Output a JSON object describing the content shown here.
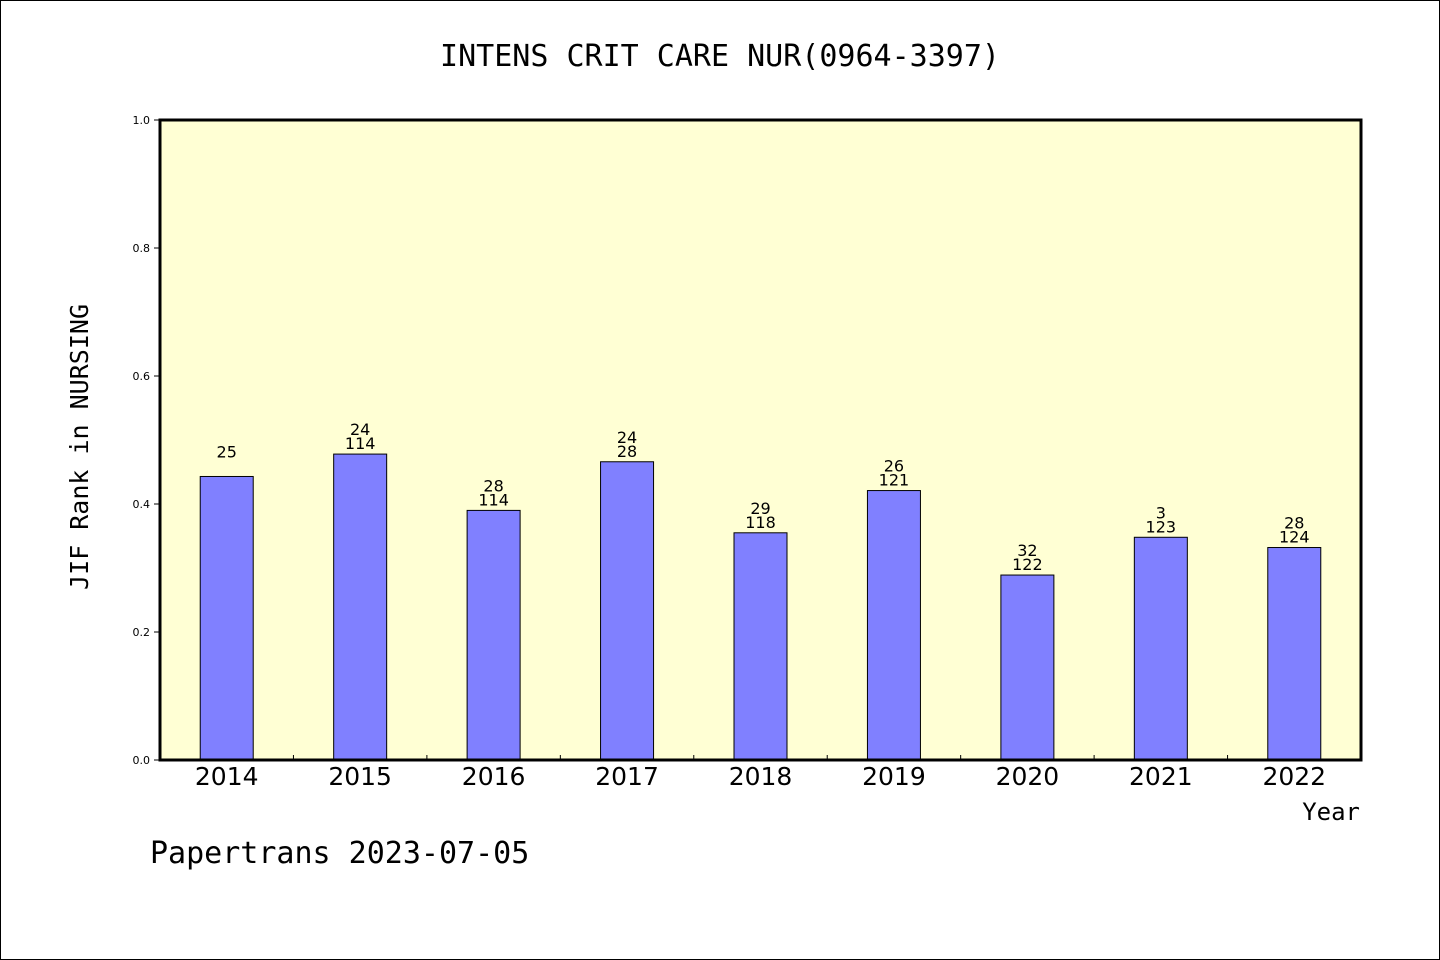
{
  "chart_data": {
    "type": "bar",
    "title": "INTENS CRIT CARE NUR(0964-3397)",
    "xlabel": "Year",
    "ylabel": "JIF Rank in NURSING",
    "ylim": [
      0,
      1
    ],
    "yticks": [
      "0.0",
      "0.2",
      "0.4",
      "0.6",
      "0.8",
      "1.0"
    ],
    "categories": [
      "2014",
      "2015",
      "2016",
      "2017",
      "2018",
      "2019",
      "2020",
      "2021",
      "2022"
    ],
    "values": [
      0.443,
      0.478,
      0.39,
      0.466,
      0.355,
      0.421,
      0.289,
      0.348,
      0.332
    ],
    "label_top": [
      "25",
      "24",
      "28",
      "24",
      "29",
      "26",
      "32",
      "3",
      "28"
    ],
    "label_bottom": [
      "",
      "114",
      "114",
      "28",
      "118",
      "121",
      "122",
      "123",
      "124"
    ],
    "grid": false,
    "legend": "none",
    "colors": {
      "plot_background": "#ffffd4",
      "bar_fill": "#8080ff",
      "bar_stroke": "#000000",
      "axis": "#000000"
    }
  },
  "footer": {
    "credit": "Papertrans 2023-07-05"
  }
}
